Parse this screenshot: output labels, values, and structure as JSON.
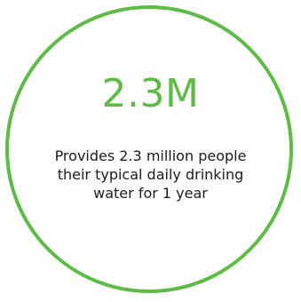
{
  "stat": {
    "value": "2.3M",
    "description": "Provides 2.3 million people their typical daily drinking water for 1 year"
  },
  "colors": {
    "accent": "#5dbb46",
    "text": "#1c1c1c",
    "background": "#ffffff"
  }
}
